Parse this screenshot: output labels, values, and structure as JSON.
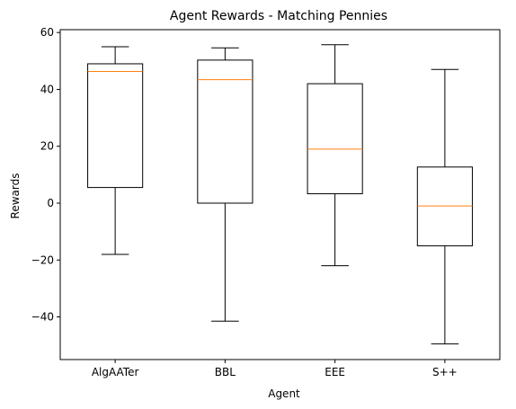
{
  "chart_data": {
    "type": "box",
    "title": "Agent Rewards - Matching Pennies",
    "xlabel": "Agent",
    "ylabel": "Rewards",
    "ylim": [
      -55,
      61
    ],
    "yticks": [
      -40,
      -20,
      0,
      20,
      40,
      60
    ],
    "grid": false,
    "categories": [
      "AlgAATer",
      "BBL",
      "EEE",
      "S++"
    ],
    "boxes": [
      {
        "category": "AlgAATer",
        "whisker_low": -18,
        "q1": 5.5,
        "median": 46.3,
        "q3": 49,
        "whisker_high": 55
      },
      {
        "category": "BBL",
        "whisker_low": -41.5,
        "q1": 0,
        "median": 43.4,
        "q3": 50.3,
        "whisker_high": 54.6
      },
      {
        "category": "EEE",
        "whisker_low": -22,
        "q1": 3.3,
        "median": 19,
        "q3": 42,
        "whisker_high": 55.7
      },
      {
        "category": "S++",
        "whisker_low": -49.5,
        "q1": -15,
        "median": -1,
        "q3": 12.7,
        "whisker_high": 47
      }
    ],
    "colors": {
      "box": "#000000",
      "median": "#ff7f0e"
    }
  }
}
